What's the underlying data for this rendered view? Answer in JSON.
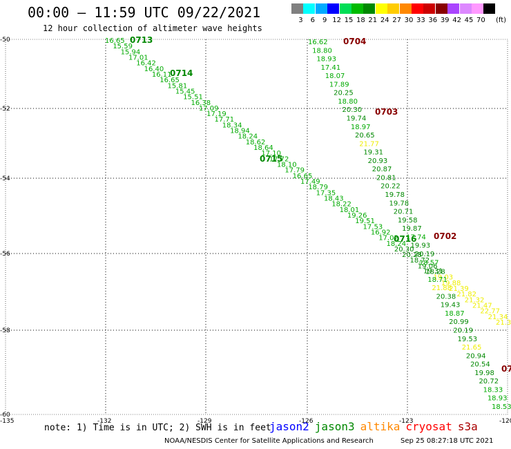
{
  "header": {
    "title": "00:00 – 11:59 UTC 09/22/2021",
    "subtitle": "12 hour collection of altimeter wave heights"
  },
  "color_scale": {
    "unit": "(ft)",
    "items": [
      {
        "label": "3",
        "color": "#808080"
      },
      {
        "label": "6",
        "color": "#00ffff"
      },
      {
        "label": "9",
        "color": "#00aaff"
      },
      {
        "label": "12",
        "color": "#0000ff"
      },
      {
        "label": "15",
        "color": "#00dd55"
      },
      {
        "label": "18",
        "color": "#00bb00"
      },
      {
        "label": "21",
        "color": "#008800"
      },
      {
        "label": "24",
        "color": "#ffff00"
      },
      {
        "label": "27",
        "color": "#ffcc00"
      },
      {
        "label": "30",
        "color": "#ff8800"
      },
      {
        "label": "33",
        "color": "#ff0000"
      },
      {
        "label": "36",
        "color": "#cc0000"
      },
      {
        "label": "39",
        "color": "#880000"
      },
      {
        "label": "42",
        "color": "#aa44ff"
      },
      {
        "label": "45",
        "color": "#dd88ff"
      },
      {
        "label": "70",
        "color": "#ff99ff"
      },
      {
        "label": "",
        "color": "#000000"
      }
    ]
  },
  "map": {
    "lon_ticks": [
      "-135",
      "-132",
      "-129",
      "-126",
      "-123",
      "-120"
    ],
    "lat_ticks": [
      "-50",
      "-52",
      "-54",
      "-56",
      "-58",
      "-60"
    ],
    "track_colors": {
      "mid": "#00aa00",
      "dark": "#008800",
      "yellow": "#eeee00",
      "pass_red": "#880000"
    },
    "tracks": [
      {
        "name": "track-west",
        "points": [
          {
            "text": "16.65",
            "c": "mid"
          },
          {
            "text": "15.59",
            "c": "mid"
          },
          {
            "text": "15.94",
            "c": "mid"
          },
          {
            "text": "17.01",
            "c": "mid"
          },
          {
            "text": "16.42",
            "c": "mid"
          },
          {
            "text": "16.40",
            "c": "mid"
          },
          {
            "text": "16.11",
            "c": "mid"
          },
          {
            "text": "16.65",
            "c": "mid"
          },
          {
            "text": "15.81",
            "c": "mid"
          },
          {
            "text": "15.45",
            "c": "mid"
          },
          {
            "text": "15.51",
            "c": "mid"
          },
          {
            "text": "16.38",
            "c": "mid"
          },
          {
            "text": "17.09",
            "c": "mid"
          },
          {
            "text": "17.19",
            "c": "mid"
          },
          {
            "text": "17.71",
            "c": "mid"
          },
          {
            "text": "18.34",
            "c": "mid"
          },
          {
            "text": "18.94",
            "c": "mid"
          },
          {
            "text": "18.24",
            "c": "mid"
          },
          {
            "text": "18.62",
            "c": "mid"
          },
          {
            "text": "18.64",
            "c": "mid"
          },
          {
            "text": "17.10",
            "c": "mid"
          },
          {
            "text": "17.72",
            "c": "mid"
          },
          {
            "text": "18.10",
            "c": "mid"
          },
          {
            "text": "17.79",
            "c": "mid"
          },
          {
            "text": "16.65",
            "c": "mid"
          },
          {
            "text": "17.49",
            "c": "mid"
          },
          {
            "text": "18.79",
            "c": "mid"
          },
          {
            "text": "17.35",
            "c": "mid"
          },
          {
            "text": "18.43",
            "c": "mid"
          },
          {
            "text": "18.22",
            "c": "mid"
          },
          {
            "text": "18.01",
            "c": "mid"
          },
          {
            "text": "19.26",
            "c": "mid"
          },
          {
            "text": "19.51",
            "c": "mid"
          },
          {
            "text": "17.53",
            "c": "mid"
          },
          {
            "text": "16.92",
            "c": "mid"
          },
          {
            "text": "17.02",
            "c": "mid"
          },
          {
            "text": "18.24",
            "c": "mid"
          },
          {
            "text": "20.30",
            "c": "dark"
          },
          {
            "text": "20.28",
            "c": "dark"
          },
          {
            "text": "18.72",
            "c": "dark"
          },
          {
            "text": "19.06",
            "c": "dark"
          },
          {
            "text": "18.28",
            "c": "dark"
          },
          {
            "text": "19.03",
            "c": "yellow"
          },
          {
            "text": "19.88",
            "c": "yellow"
          },
          {
            "text": "21.39",
            "c": "yellow"
          },
          {
            "text": "21.82",
            "c": "yellow"
          },
          {
            "text": "21.32",
            "c": "yellow"
          },
          {
            "text": "21.47",
            "c": "yellow"
          },
          {
            "text": "22.77",
            "c": "yellow"
          },
          {
            "text": "21.34",
            "c": "yellow"
          },
          {
            "text": "21.34",
            "c": "yellow"
          }
        ],
        "pass_labels": [
          {
            "text": "0713",
            "c": "dark"
          },
          {
            "text": "0714",
            "c": "dark"
          },
          {
            "text": "0715",
            "c": "dark"
          },
          {
            "text": "0716",
            "c": "dark"
          }
        ]
      },
      {
        "name": "track-east",
        "points": [
          {
            "text": "16.62",
            "c": "mid"
          },
          {
            "text": "18.80",
            "c": "mid"
          },
          {
            "text": "18.93",
            "c": "mid"
          },
          {
            "text": "17.41",
            "c": "mid"
          },
          {
            "text": "18.07",
            "c": "mid"
          },
          {
            "text": "17.89",
            "c": "mid"
          },
          {
            "text": "20.25",
            "c": "dark"
          },
          {
            "text": "18.80",
            "c": "mid"
          },
          {
            "text": "20.30",
            "c": "dark"
          },
          {
            "text": "19.74",
            "c": "dark"
          },
          {
            "text": "18.97",
            "c": "mid"
          },
          {
            "text": "20.65",
            "c": "dark"
          },
          {
            "text": "21.77",
            "c": "yellow"
          },
          {
            "text": "19.31",
            "c": "dark"
          },
          {
            "text": "20.93",
            "c": "dark"
          },
          {
            "text": "20.87",
            "c": "dark"
          },
          {
            "text": "20.81",
            "c": "dark"
          },
          {
            "text": "20.22",
            "c": "dark"
          },
          {
            "text": "19.78",
            "c": "dark"
          },
          {
            "text": "19.78",
            "c": "dark"
          },
          {
            "text": "20.71",
            "c": "dark"
          },
          {
            "text": "19.58",
            "c": "dark"
          },
          {
            "text": "19.87",
            "c": "dark"
          },
          {
            "text": "17.74",
            "c": "mid"
          },
          {
            "text": "19.93",
            "c": "dark"
          },
          {
            "text": "20.19",
            "c": "dark"
          },
          {
            "text": "18.57",
            "c": "mid"
          },
          {
            "text": "19.31",
            "c": "dark"
          },
          {
            "text": "18.71",
            "c": "mid"
          },
          {
            "text": "21.88",
            "c": "yellow"
          },
          {
            "text": "20.38",
            "c": "dark"
          },
          {
            "text": "19.43",
            "c": "dark"
          },
          {
            "text": "18.87",
            "c": "mid"
          },
          {
            "text": "20.99",
            "c": "dark"
          },
          {
            "text": "20.19",
            "c": "dark"
          },
          {
            "text": "19.53",
            "c": "dark"
          },
          {
            "text": "21.65",
            "c": "yellow"
          },
          {
            "text": "20.94",
            "c": "dark"
          },
          {
            "text": "20.54",
            "c": "dark"
          },
          {
            "text": "19.98",
            "c": "dark"
          },
          {
            "text": "20.72",
            "c": "dark"
          },
          {
            "text": "18.33",
            "c": "mid"
          },
          {
            "text": "18.93",
            "c": "mid"
          },
          {
            "text": "18.53",
            "c": "mid"
          }
        ],
        "pass_labels": [
          {
            "text": "0704",
            "c": "pass_red"
          },
          {
            "text": "0703",
            "c": "pass_red"
          },
          {
            "text": "0702",
            "c": "pass_red"
          },
          {
            "text": "07",
            "c": "pass_red"
          }
        ]
      }
    ]
  },
  "footer": {
    "note": "note: 1) Time is in UTC; 2) SWH is in feet",
    "satellites": [
      {
        "name": "jason2",
        "color": "#0000ff"
      },
      {
        "name": "jason3",
        "color": "#008800"
      },
      {
        "name": "altika",
        "color": "#ff8800"
      },
      {
        "name": "cryosat",
        "color": "#ff0000"
      },
      {
        "name": "s3a",
        "color": "#aa0000"
      }
    ],
    "credit": "NOAA/NESDIS Center for Satellite Applications and Research",
    "timestamp": "Sep 25 08:27:18 UTC 2021"
  }
}
